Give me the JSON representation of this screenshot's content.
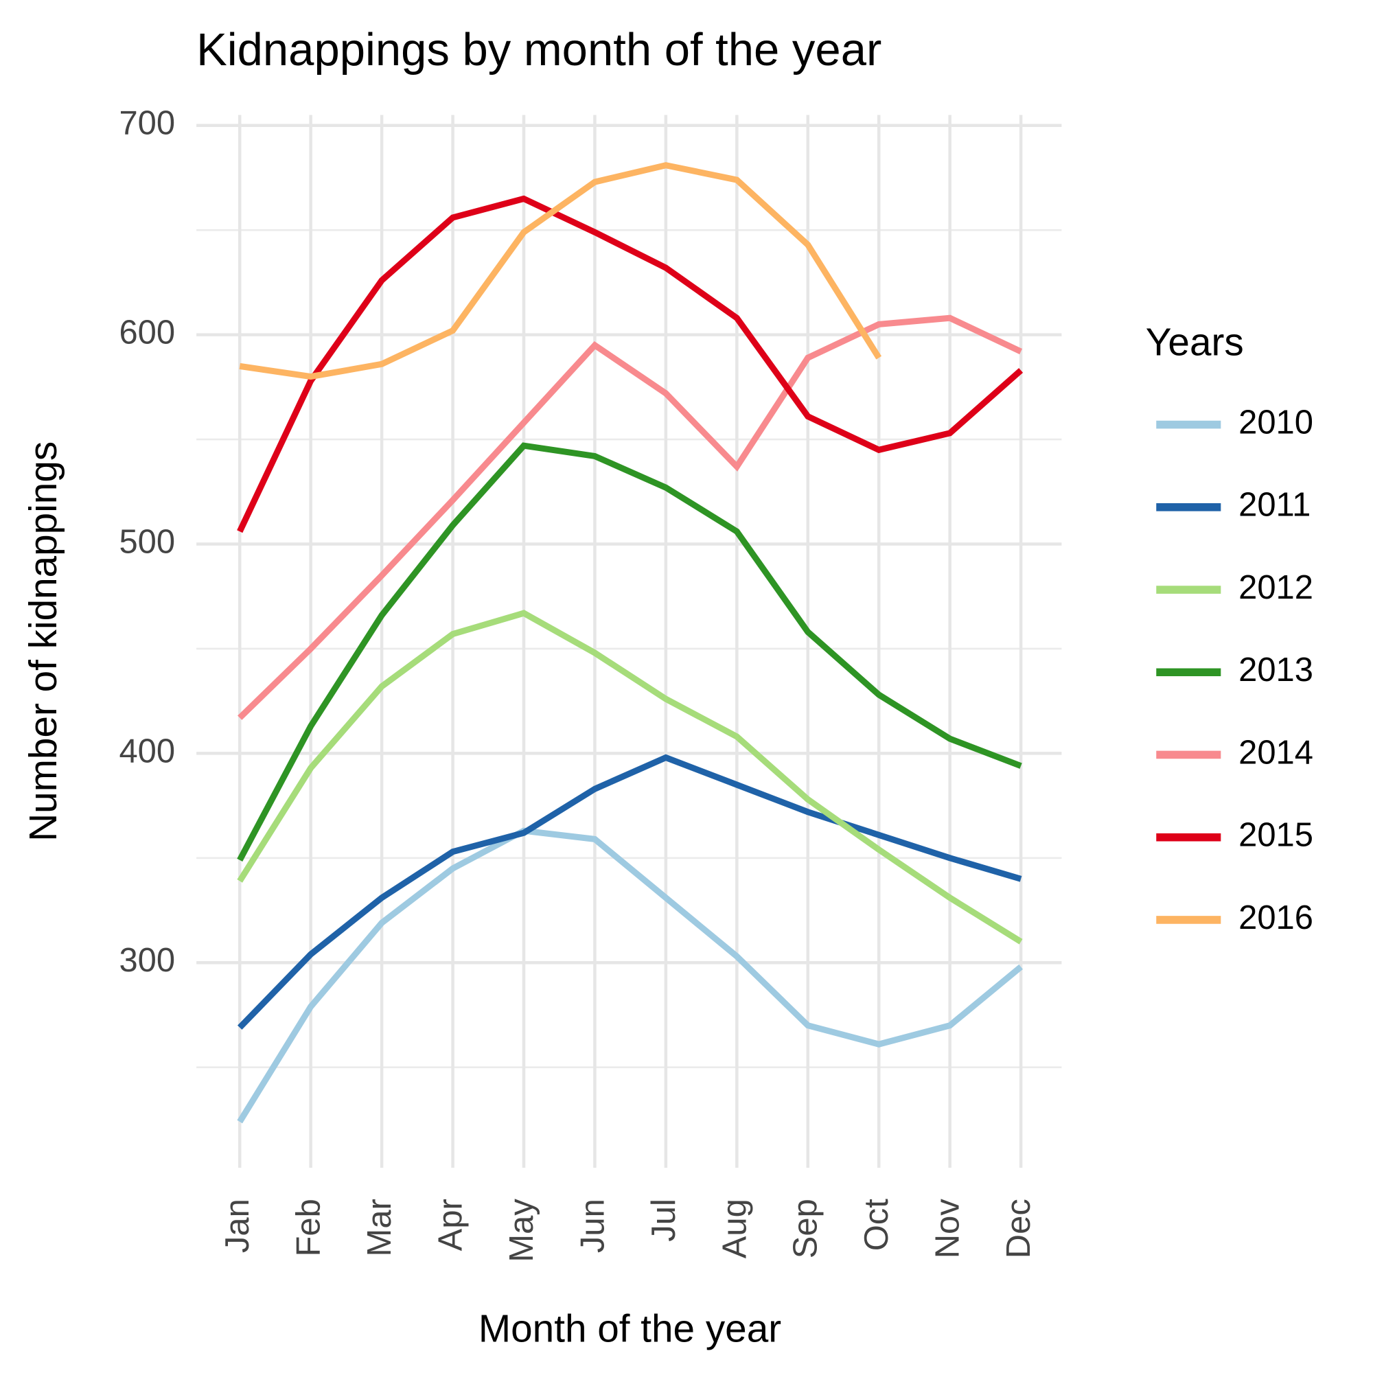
{
  "chart_data": {
    "type": "line",
    "title": "Kidnappings by month of the year",
    "x_label": "Month of the year",
    "y_label": "Number of kidnappings",
    "legend_title": "Years",
    "categories": [
      "Jan",
      "Feb",
      "Mar",
      "Apr",
      "May",
      "Jun",
      "Jul",
      "Aug",
      "Sep",
      "Oct",
      "Nov",
      "Dec"
    ],
    "ylim": [
      202,
      705
    ],
    "yticks": [
      300,
      400,
      500,
      600,
      700
    ],
    "yticks_minor": [
      250,
      350,
      450,
      550,
      650
    ],
    "grid": true,
    "legend": "right",
    "series": [
      {
        "name": "2010",
        "color": "#9ecae1",
        "values": [
          224,
          279,
          319,
          345,
          363,
          359,
          331,
          303,
          270,
          261,
          270,
          298
        ]
      },
      {
        "name": "2011",
        "color": "#1f62a8",
        "values": [
          269,
          304,
          331,
          353,
          362,
          383,
          398,
          385,
          372,
          361,
          350,
          340
        ]
      },
      {
        "name": "2012",
        "color": "#a6dc7a",
        "values": [
          339,
          393,
          432,
          457,
          467,
          448,
          426,
          408,
          378,
          354,
          331,
          310
        ]
      },
      {
        "name": "2013",
        "color": "#2e9424",
        "values": [
          349,
          413,
          466,
          509,
          547,
          542,
          527,
          506,
          458,
          428,
          407,
          394
        ]
      },
      {
        "name": "2014",
        "color": "#f88a8e",
        "values": [
          417,
          450,
          485,
          521,
          558,
          595,
          572,
          537,
          589,
          605,
          608,
          592
        ]
      },
      {
        "name": "2015",
        "color": "#de0018",
        "values": [
          506,
          578,
          626,
          656,
          665,
          649,
          632,
          608,
          561,
          545,
          553,
          583
        ]
      },
      {
        "name": "2016",
        "color": "#fdb462",
        "values": [
          585,
          580,
          586,
          602,
          649,
          673,
          681,
          674,
          643,
          589,
          null,
          null
        ]
      }
    ]
  }
}
